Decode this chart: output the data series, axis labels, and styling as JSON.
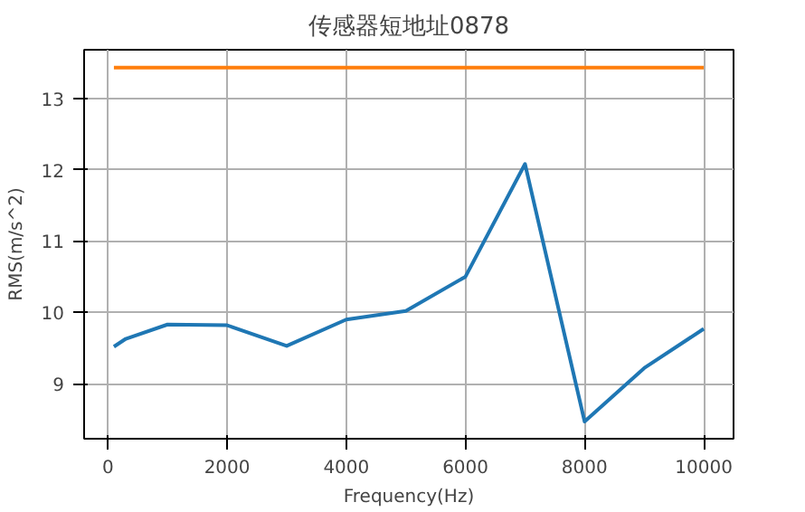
{
  "chart_data": {
    "type": "line",
    "title": "传感器短地址0878",
    "xlabel": "Frequency(Hz)",
    "ylabel": "RMS(m/s^2)",
    "series": [
      {
        "color": "#1f77b4",
        "x": [
          100,
          300,
          1000,
          2000,
          3000,
          4000,
          5000,
          6000,
          7000,
          8000,
          9000,
          10000
        ],
        "values": [
          9.52,
          9.63,
          9.83,
          9.82,
          9.53,
          9.9,
          10.02,
          10.5,
          12.08,
          8.47,
          9.22,
          9.77
        ]
      },
      {
        "color": "#ff7f0e",
        "x": [
          100,
          10000
        ],
        "values": [
          13.43,
          13.43
        ]
      }
    ],
    "xlim": [
      -400,
      10500
    ],
    "ylim": [
      8.23,
      13.68
    ],
    "xticks": [
      0,
      2000,
      4000,
      6000,
      8000,
      10000
    ],
    "yticks": [
      9,
      10,
      11,
      12,
      13
    ],
    "grid": true
  }
}
